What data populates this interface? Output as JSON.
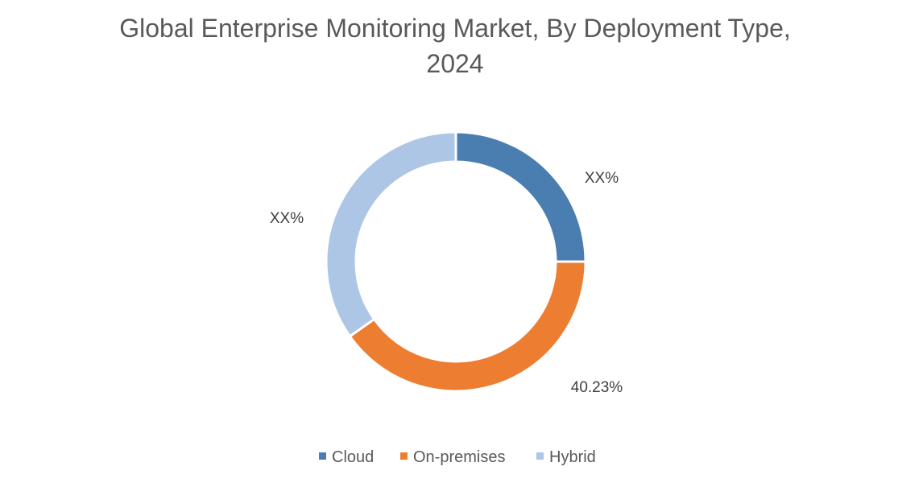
{
  "chart_data": {
    "type": "pie",
    "variant": "donut",
    "title_lines": [
      "Global Enterprise Monitoring Market, By Deployment Type,",
      "2024"
    ],
    "categories": [
      "Cloud",
      "On-premises",
      "Hybrid"
    ],
    "values": [
      25,
      40.23,
      34.77
    ],
    "data_labels": [
      "XX%",
      "40.23%",
      "XX%"
    ],
    "colors": [
      "#4a7eb0",
      "#ed7d31",
      "#adc6e5"
    ],
    "legend_position": "bottom"
  }
}
